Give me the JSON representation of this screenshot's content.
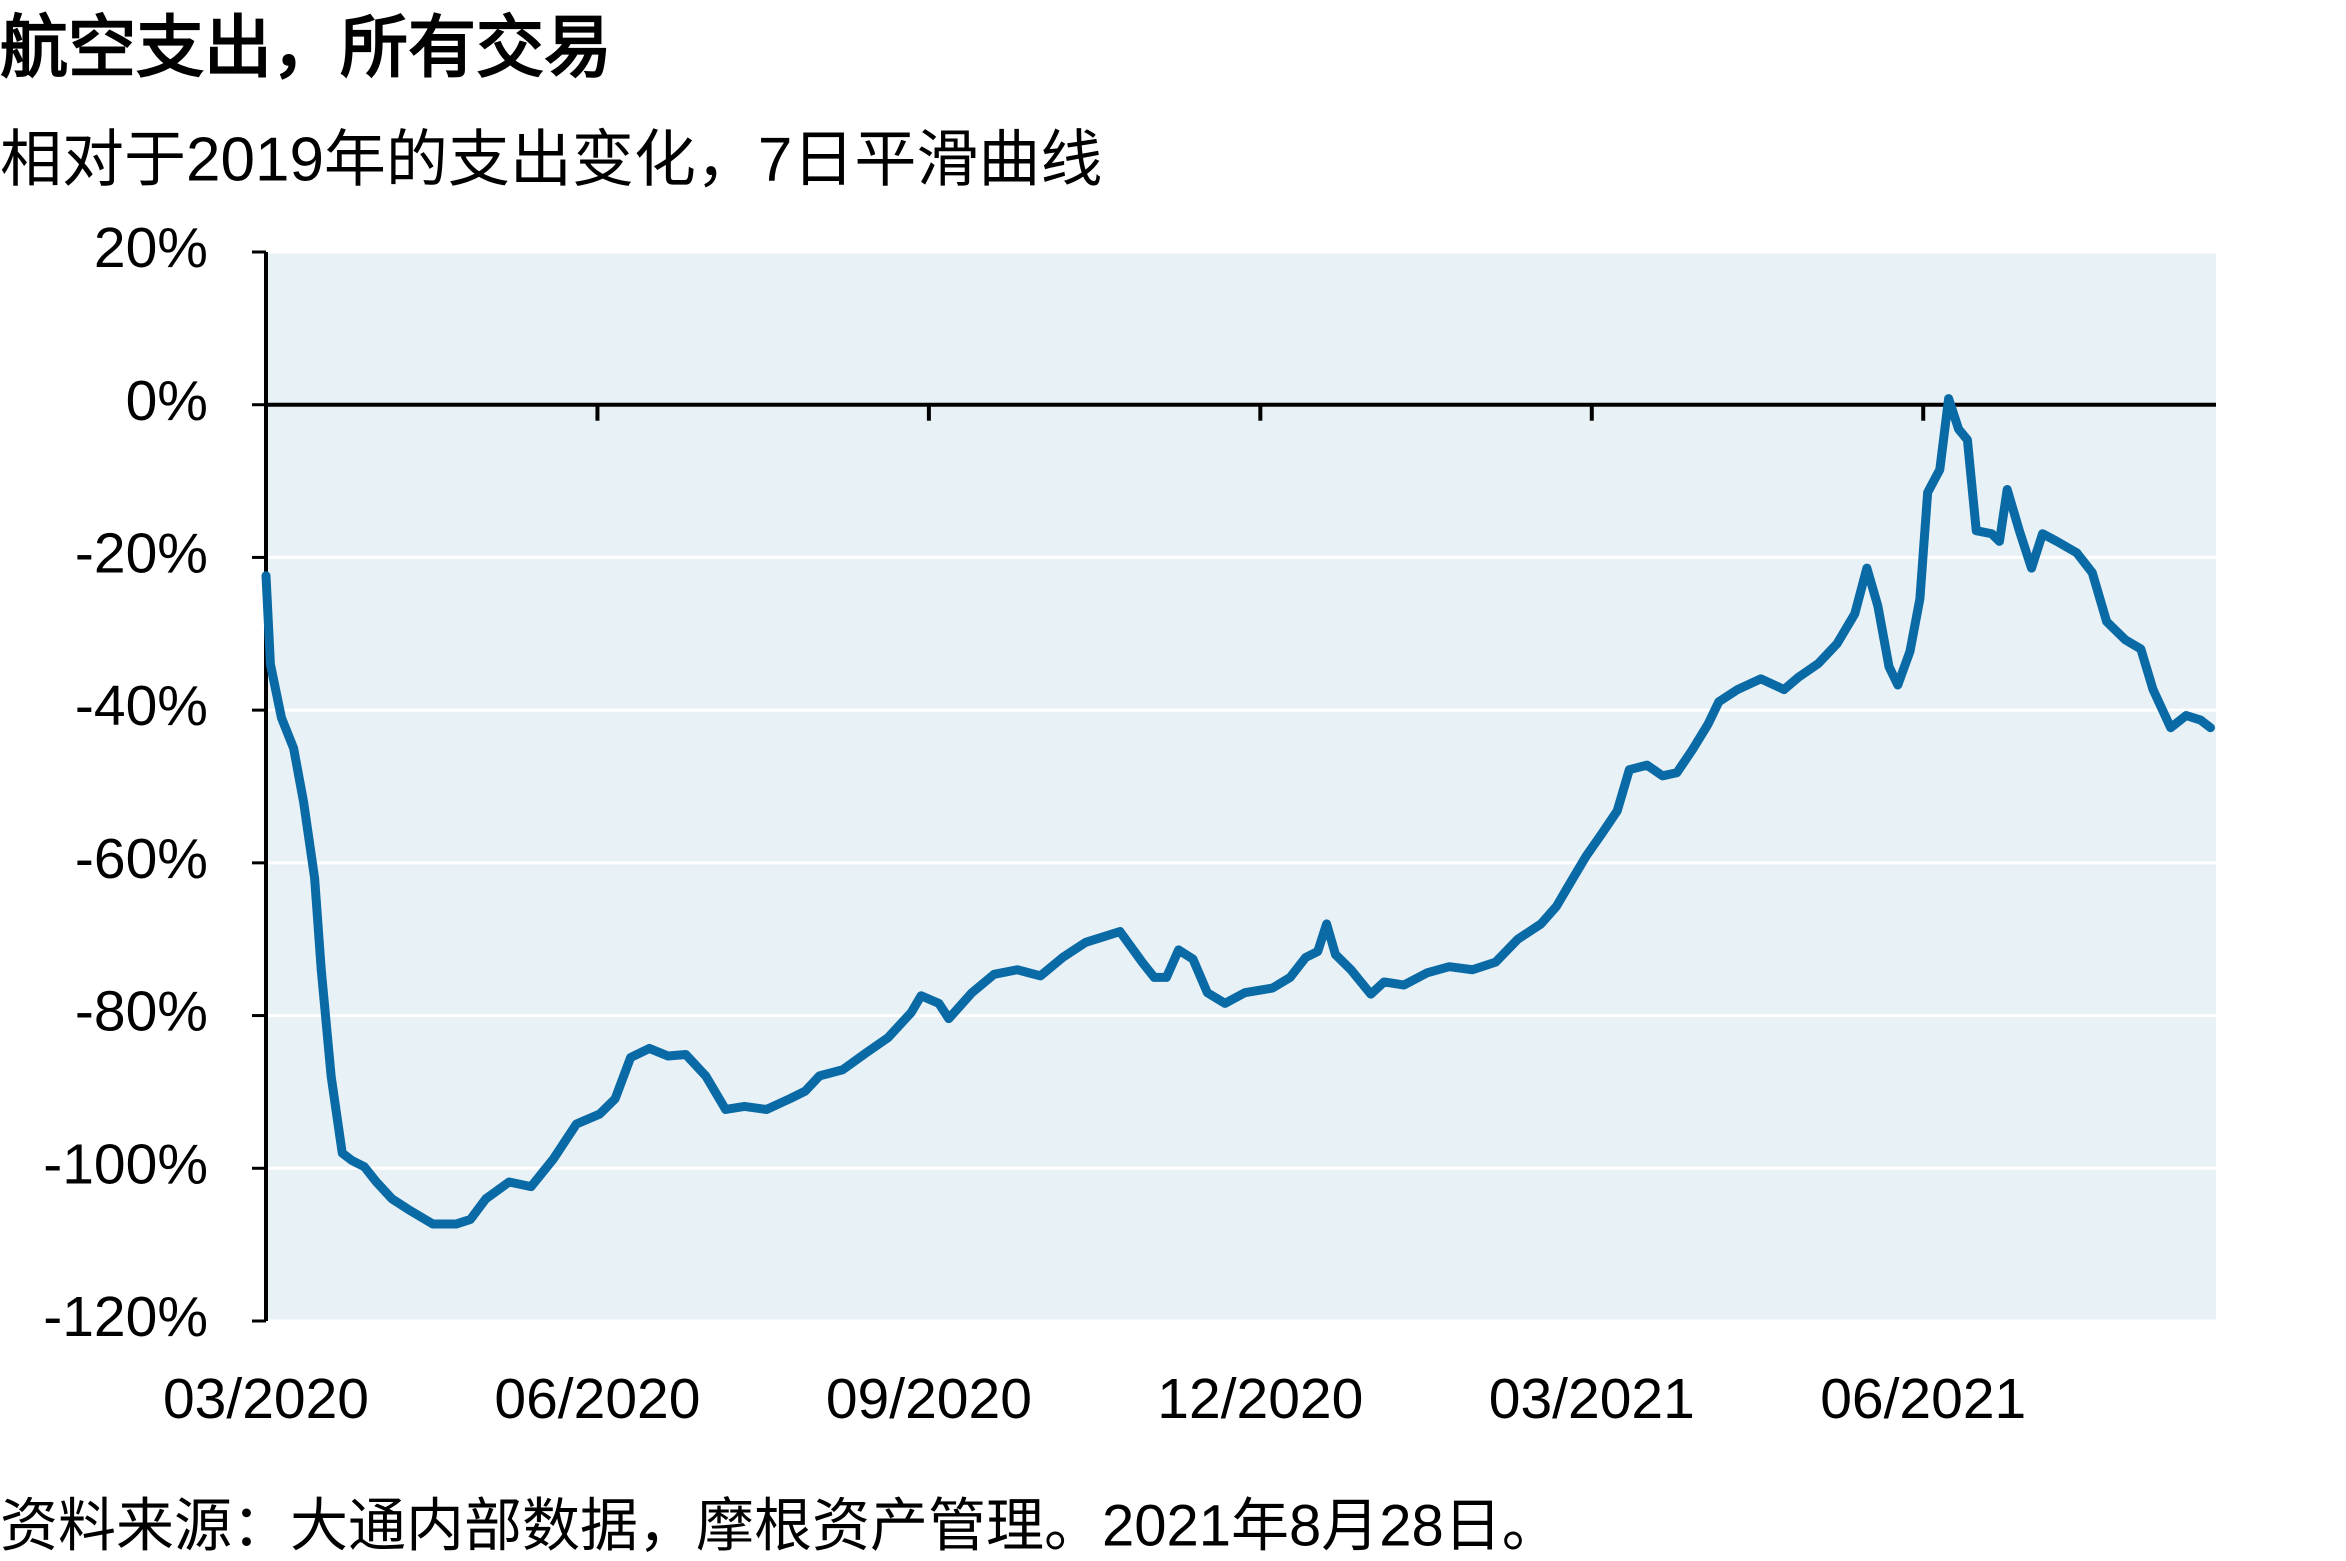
{
  "chart_data": {
    "type": "line",
    "title": "航空支出，所有交易",
    "subtitle": "相对于2019年的支出变化，7日平滑曲线",
    "source": "资料来源：大通内部数据，摩根资产管理。2021年8月28日。",
    "xlim": [
      0,
      17.65
    ],
    "xticks": [
      {
        "value": 0,
        "label": "03/2020"
      },
      {
        "value": 3,
        "label": "06/2020"
      },
      {
        "value": 6,
        "label": "09/2020"
      },
      {
        "value": 9,
        "label": "12/2020"
      },
      {
        "value": 12,
        "label": "03/2021"
      },
      {
        "value": 15,
        "label": "06/2021"
      }
    ],
    "ylim": [
      -120,
      20
    ],
    "yticks": [
      {
        "value": 20,
        "label": "20%"
      },
      {
        "value": 0,
        "label": "0%"
      },
      {
        "value": -20,
        "label": "-20%"
      },
      {
        "value": -40,
        "label": "-40%"
      },
      {
        "value": -60,
        "label": "-60%"
      },
      {
        "value": -80,
        "label": "-80%"
      },
      {
        "value": -100,
        "label": "-100%"
      },
      {
        "value": -120,
        "label": "-120%"
      }
    ],
    "grid": true,
    "background": "#e8f1f5",
    "x": [
      0,
      0.04,
      0.14,
      0.25,
      0.34,
      0.44,
      0.5,
      0.59,
      0.69,
      0.78,
      0.89,
      1.0,
      1.14,
      1.3,
      1.51,
      1.72,
      1.85,
      1.99,
      2.2,
      2.4,
      2.6,
      2.81,
      3.02,
      3.16,
      3.3,
      3.47,
      3.64,
      3.8,
      3.98,
      4.16,
      4.33,
      4.53,
      4.74,
      4.88,
      5.01,
      5.22,
      5.43,
      5.63,
      5.84,
      5.93,
      6.09,
      6.18,
      6.39,
      6.59,
      6.8,
      7.01,
      7.21,
      7.42,
      7.73,
      7.93,
      8.04,
      8.15,
      8.26,
      8.39,
      8.52,
      8.68,
      8.86,
      9.11,
      9.27,
      9.41,
      9.52,
      9.6,
      9.68,
      9.82,
      10.0,
      10.12,
      10.3,
      10.51,
      10.71,
      10.92,
      11.13,
      11.33,
      11.54,
      11.68,
      11.81,
      11.95,
      12.09,
      12.23,
      12.34,
      12.5,
      12.64,
      12.77,
      12.91,
      13.05,
      13.15,
      13.32,
      13.53,
      13.74,
      13.87,
      14.05,
      14.22,
      14.38,
      14.49,
      14.59,
      14.69,
      14.77,
      14.88,
      14.97,
      15.04,
      15.15,
      15.23,
      15.32,
      15.4,
      15.48,
      15.62,
      15.69,
      15.76,
      15.87,
      15.98,
      16.08,
      16.21,
      16.39,
      16.53,
      16.66,
      16.83,
      16.97,
      17.08,
      17.24,
      17.38,
      17.51,
      17.6
    ],
    "series": [
      {
        "name": "航空支出",
        "color": "#0a6aa6",
        "values": [
          -22.4,
          -34,
          -41,
          -45,
          -52,
          -62,
          -74,
          -88,
          -98,
          -99,
          -99.8,
          -101.8,
          -104,
          -105.5,
          -107.3,
          -107.3,
          -106.7,
          -104,
          -101.8,
          -102.4,
          -98.8,
          -94.2,
          -92.9,
          -90.9,
          -85.5,
          -84.3,
          -85.3,
          -85.1,
          -87.9,
          -92.3,
          -91.9,
          -92.3,
          -90.9,
          -89.9,
          -87.9,
          -87.1,
          -84.9,
          -82.9,
          -79.6,
          -77.4,
          -78.4,
          -80.4,
          -77,
          -74.6,
          -74,
          -74.8,
          -72.4,
          -70.4,
          -69,
          -73,
          -75,
          -75,
          -71.4,
          -72.6,
          -77,
          -78.4,
          -77,
          -76.4,
          -75,
          -72.4,
          -71.6,
          -68,
          -72,
          -74,
          -77.2,
          -75.6,
          -76,
          -74.4,
          -73.6,
          -74,
          -73,
          -70,
          -68,
          -65.7,
          -62.5,
          -59.1,
          -56.2,
          -53.2,
          -47.8,
          -47.2,
          -48.6,
          -48.2,
          -45.2,
          -41.9,
          -38.9,
          -37.3,
          -35.9,
          -37.3,
          -35.7,
          -33.9,
          -31.3,
          -27.4,
          -21.4,
          -26.4,
          -34.3,
          -36.7,
          -32.3,
          -25.4,
          -11.5,
          -8.5,
          0.8,
          -3.2,
          -4.6,
          -16.5,
          -16.9,
          -17.9,
          -11.1,
          -16.5,
          -21.4,
          -16.9,
          -17.9,
          -19.4,
          -22,
          -28.4,
          -30.8,
          -32,
          -37.3,
          -42.3,
          -40.7,
          -41.3,
          -42.3
        ]
      }
    ]
  }
}
